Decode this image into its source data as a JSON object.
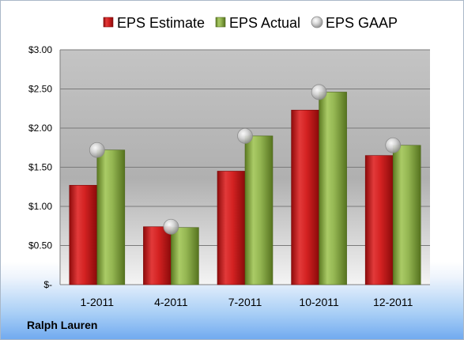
{
  "company": "Ralph Lauren",
  "chart_data": {
    "type": "bar",
    "categories": [
      "1-2011",
      "4-2011",
      "7-2011",
      "10-2011",
      "12-2011"
    ],
    "series": [
      {
        "name": "EPS Estimate",
        "type": "bar",
        "color": "#cc1f1f",
        "values": [
          1.27,
          0.74,
          1.45,
          2.23,
          1.65
        ]
      },
      {
        "name": "EPS Actual",
        "type": "bar",
        "color": "#8eb04a",
        "values": [
          1.72,
          0.73,
          1.9,
          2.46,
          1.78
        ]
      },
      {
        "name": "EPS GAAP",
        "type": "scatter",
        "color": "#c8c8c8",
        "values": [
          1.72,
          0.74,
          1.9,
          2.46,
          1.78
        ]
      }
    ],
    "ylim": [
      0,
      3.0
    ],
    "yticks": [
      0,
      0.5,
      1.0,
      1.5,
      2.0,
      2.5,
      3.0
    ],
    "ytick_labels": [
      "$-",
      "$0.50",
      "$1.00",
      "$1.50",
      "$2.00",
      "$2.50",
      "$3.00"
    ],
    "grid": true,
    "legend": "top"
  }
}
